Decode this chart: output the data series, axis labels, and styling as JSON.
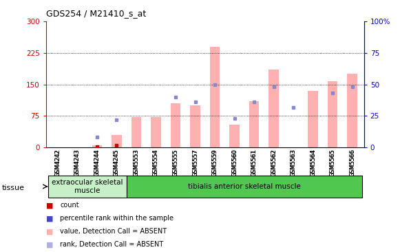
{
  "title": "GDS254 / M21410_s_at",
  "samples": [
    "GSM4242",
    "GSM4243",
    "GSM4244",
    "GSM4245",
    "GSM5553",
    "GSM5554",
    "GSM5555",
    "GSM5557",
    "GSM5559",
    "GSM5560",
    "GSM5561",
    "GSM5562",
    "GSM5563",
    "GSM5564",
    "GSM5565",
    "GSM5566"
  ],
  "pink_bars": [
    0,
    0,
    5,
    30,
    72,
    72,
    105,
    100,
    240,
    55,
    110,
    185,
    0,
    135,
    158,
    175
  ],
  "blue_squares_pct": [
    0,
    0,
    8,
    22,
    0,
    0,
    40,
    36,
    50,
    23,
    36,
    48,
    32,
    0,
    43,
    48
  ],
  "red_squares": [
    0,
    0,
    2,
    5,
    0,
    0,
    0,
    0,
    0,
    0,
    0,
    0,
    0,
    0,
    0,
    0
  ],
  "tissue_groups": [
    {
      "label": "extraocular skeletal\nmuscle",
      "start": 0,
      "end": 4,
      "color": "#c8f0c8"
    },
    {
      "label": "tibialis anterior skeletal muscle",
      "start": 4,
      "end": 16,
      "color": "#50c850"
    }
  ],
  "ylim_left": [
    0,
    300
  ],
  "ylim_right": [
    0,
    100
  ],
  "yticks_left": [
    0,
    75,
    150,
    225,
    300
  ],
  "yticks_right": [
    0,
    25,
    50,
    75,
    100
  ],
  "ytick_labels_left": [
    "0",
    "75",
    "150",
    "225",
    "300"
  ],
  "ytick_labels_right": [
    "0",
    "25",
    "50",
    "75",
    "100%"
  ],
  "left_axis_color": "#cc0000",
  "right_axis_color": "#0000cc",
  "bar_color_pink": "#ffb0b0",
  "bar_color_blue": "#8888cc",
  "bar_color_red": "#cc0000",
  "bar_width": 0.5,
  "bg_color": "#ffffff",
  "tissue_label": "tissue",
  "legend_items": [
    {
      "label": "count",
      "color": "#cc0000"
    },
    {
      "label": "percentile rank within the sample",
      "color": "#4444cc"
    },
    {
      "label": "value, Detection Call = ABSENT",
      "color": "#ffb0b0"
    },
    {
      "label": "rank, Detection Call = ABSENT",
      "color": "#b0b0e0"
    }
  ]
}
